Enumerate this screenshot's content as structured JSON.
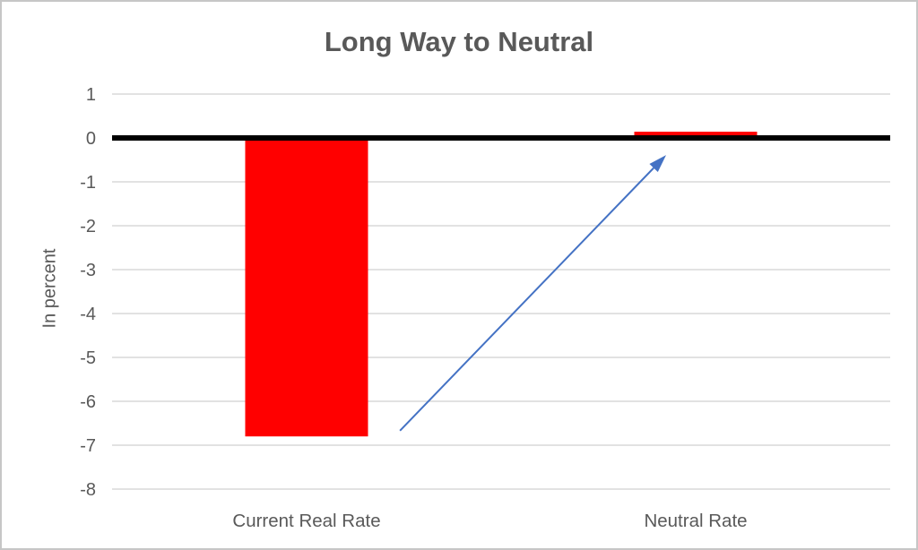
{
  "chart_data": {
    "type": "bar",
    "title": "Long Way to Neutral",
    "ylabel": "In percent",
    "xlabel": "",
    "categories": [
      "Current Real Rate",
      "Neutral Rate"
    ],
    "values": [
      -6.8,
      0.1
    ],
    "ylim": [
      -8,
      1
    ],
    "yticks": [
      1,
      0,
      -1,
      -2,
      -3,
      -4,
      -5,
      -6,
      -7,
      -8
    ],
    "grid": "horizontal",
    "legend": "none",
    "colors": {
      "bar": "#ff0000",
      "zero_line": "#000000",
      "gridline": "#d9d9d9",
      "text": "#595959",
      "arrow": "#4472c4",
      "background": "#ffffff",
      "frame_border": "#c6c6c6"
    },
    "annotation": {
      "type": "arrow",
      "color": "#4472c4",
      "from": {
        "x_frac": 0.37,
        "y": -6.67
      },
      "to": {
        "x_frac": 0.712,
        "y": -0.39
      }
    }
  }
}
